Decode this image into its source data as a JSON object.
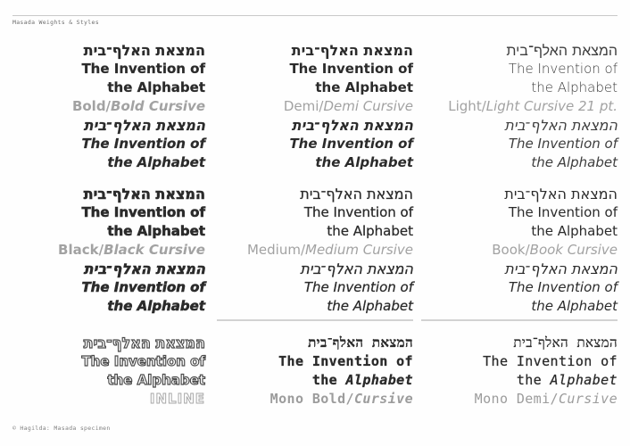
{
  "meta": {
    "header": "Masada Weights & Styles",
    "footer": "© Hagilda: Masada specimen"
  },
  "specimen": {
    "hebrew": "המצאת האלף־בית",
    "line1": "The Invention of",
    "line2": "the Alphabet",
    "line2_prefix": "the ",
    "line2_word": "Alphabet"
  },
  "blocks": [
    {
      "id": "bold",
      "label_roman": "Bold/",
      "label_cursive": "Bold Cursive"
    },
    {
      "id": "demi",
      "label_roman": "Demi/",
      "label_cursive": "Demi Cursive"
    },
    {
      "id": "light",
      "label_roman": "Light/",
      "label_cursive": "Light Cursive 21 pt."
    },
    {
      "id": "black",
      "label_roman": "Black/",
      "label_cursive": "Black Cursive"
    },
    {
      "id": "medium",
      "label_roman": "Medium/",
      "label_cursive": "Medium Cursive"
    },
    {
      "id": "book",
      "label_roman": "Book/",
      "label_cursive": "Book Cursive"
    },
    {
      "id": "inline",
      "label_roman": "INLINE",
      "label_cursive": ""
    },
    {
      "id": "mono-bold",
      "label_roman": "Mono Bold/",
      "label_cursive": "Cursive"
    },
    {
      "id": "mono-demi",
      "label_roman": "Mono Demi/",
      "label_cursive": "Cursive"
    }
  ],
  "colors": {
    "text": "#2b2b2b",
    "label_gray": "#a2a2a2",
    "rule_gray": "#d2d2d2",
    "background": "#fefefe"
  }
}
